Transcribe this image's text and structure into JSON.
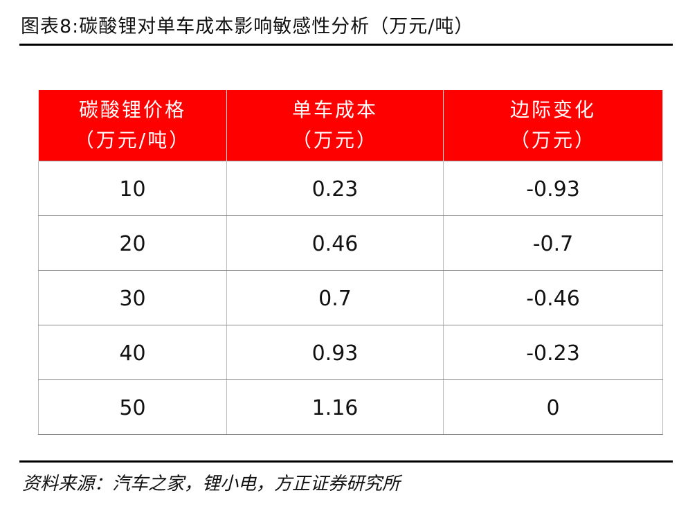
{
  "header": {
    "title": "图表8:碳酸锂对单车成本影响敏感性分析（万元/吨）"
  },
  "table": {
    "columns": [
      [
        "碳酸锂价格",
        "（万元/吨）"
      ],
      [
        "单车成本",
        "（万元）"
      ],
      [
        "边际变化",
        "（万元）"
      ]
    ],
    "rows": [
      [
        "10",
        "0.23",
        "-0.93"
      ],
      [
        "20",
        "0.46",
        "-0.7"
      ],
      [
        "30",
        "0.7",
        "-0.46"
      ],
      [
        "40",
        "0.93",
        "-0.23"
      ],
      [
        "50",
        "1.16",
        "0"
      ]
    ]
  },
  "footer": {
    "source": "资料来源：汽车之家，锂小电，方正证券研究所"
  }
}
